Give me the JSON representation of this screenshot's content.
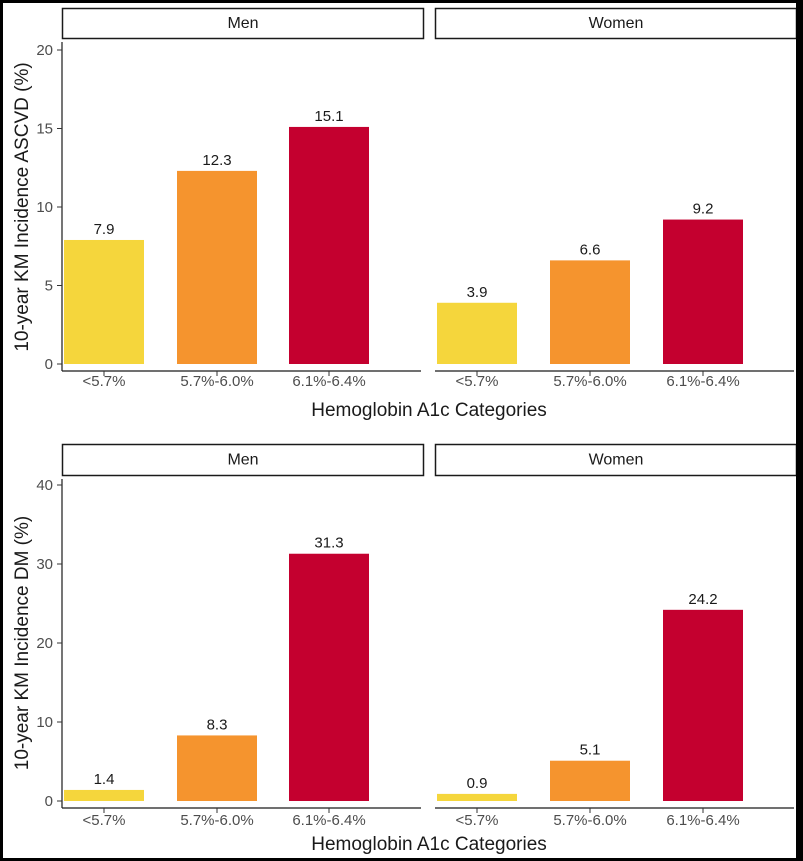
{
  "chart_data": [
    {
      "type": "bar",
      "ylabel": "10-year KM Incidence ASCVD (%)",
      "xlabel": "Hemoglobin A1c Categories",
      "ylim": [
        0,
        20
      ],
      "yticks": [
        0,
        5,
        10,
        15,
        20
      ],
      "categories": [
        "<5.7%",
        "5.7%-6.0%",
        "6.1%-6.4%"
      ],
      "colors": [
        "#f5d63c",
        "#f5942e",
        "#c4002f"
      ],
      "panels": [
        {
          "name": "Men",
          "values": [
            7.9,
            12.3,
            15.1
          ],
          "labels": [
            "7.9",
            "12.3",
            "15.1"
          ]
        },
        {
          "name": "Women",
          "values": [
            3.9,
            6.6,
            9.2
          ],
          "labels": [
            "3.9",
            "6.6",
            "9.2"
          ]
        }
      ]
    },
    {
      "type": "bar",
      "ylabel": "10-year KM Incidence DM (%)",
      "xlabel": "Hemoglobin A1c Categories",
      "ylim": [
        0,
        40
      ],
      "yticks": [
        0,
        10,
        20,
        30,
        40
      ],
      "categories": [
        "<5.7%",
        "5.7%-6.0%",
        "6.1%-6.4%"
      ],
      "colors": [
        "#f5d63c",
        "#f5942e",
        "#c4002f"
      ],
      "panels": [
        {
          "name": "Men",
          "values": [
            1.4,
            8.3,
            31.3
          ],
          "labels": [
            "1.4",
            "8.3",
            "31.3"
          ]
        },
        {
          "name": "Women",
          "values": [
            0.9,
            5.1,
            24.2
          ],
          "labels": [
            "0.9",
            "5.1",
            "24.2"
          ]
        }
      ]
    }
  ]
}
